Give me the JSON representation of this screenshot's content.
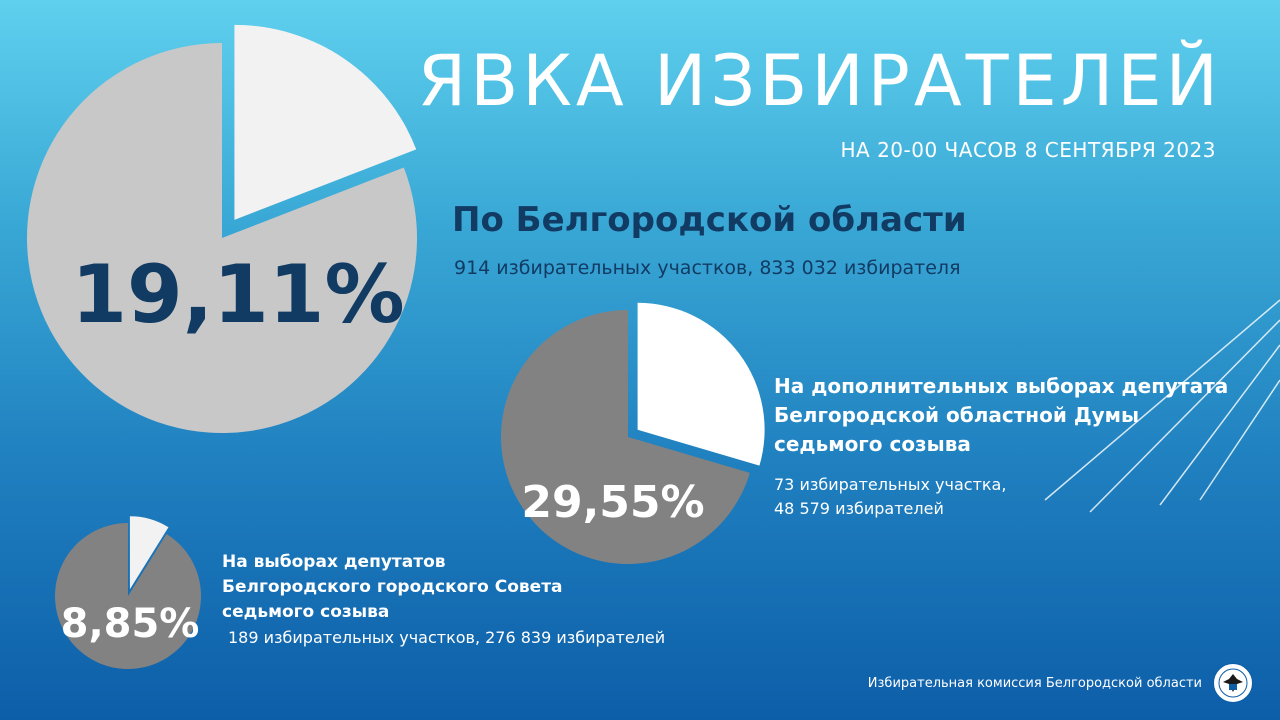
{
  "header": {
    "title": "ЯВКА ИЗБИРАТЕЛЕЙ",
    "subtitle": "НА 20-00 ЧАСОВ  8 СЕНТЯБРЯ 2023"
  },
  "region": {
    "title": "По Белгородской области",
    "subtitle": "914 избирательных участков, 833 032 избирателя",
    "percent_label": "19,11%"
  },
  "duma": {
    "title_lines": [
      "На дополнительных выборах депутата",
      "Белгородской областной Думы",
      "седьмого созыва"
    ],
    "stats_lines": [
      "73 избирательных участка,",
      "48 579 избирателей"
    ],
    "percent_label": "29,55%"
  },
  "council": {
    "title_lines": [
      "На выборах депутатов",
      "Белгородского городского Совета",
      "седьмого созыва"
    ],
    "stats": "189 избирательных участков, 276 839 избирателей",
    "percent_label": "8,85%"
  },
  "footer": {
    "commission": "Избирательная комиссия Белгородской области"
  },
  "colors": {
    "bg_top": "#5fd0ee",
    "bg_bottom": "#0d5ea8",
    "pie_light": "#c8c8c8",
    "pie_dark": "#828282",
    "slice_highlight": "#f2f2f2",
    "accent_text": "#123b63"
  },
  "chart_data": [
    {
      "type": "pie",
      "title": "По Белгородской области",
      "slices": [
        {
          "label": "19,11%",
          "value": 19.11
        },
        {
          "value": 80.89
        }
      ]
    },
    {
      "type": "pie",
      "title": "На дополнительных выборах депутата Белгородской областной Думы седьмого созыва",
      "slices": [
        {
          "label": "29,55%",
          "value": 29.55
        },
        {
          "value": 70.45
        }
      ]
    },
    {
      "type": "pie",
      "title": "На выборах депутатов Белгородского городского Совета седьмого созыва",
      "slices": [
        {
          "label": "8,85%",
          "value": 8.85
        },
        {
          "value": 91.15
        }
      ]
    }
  ]
}
